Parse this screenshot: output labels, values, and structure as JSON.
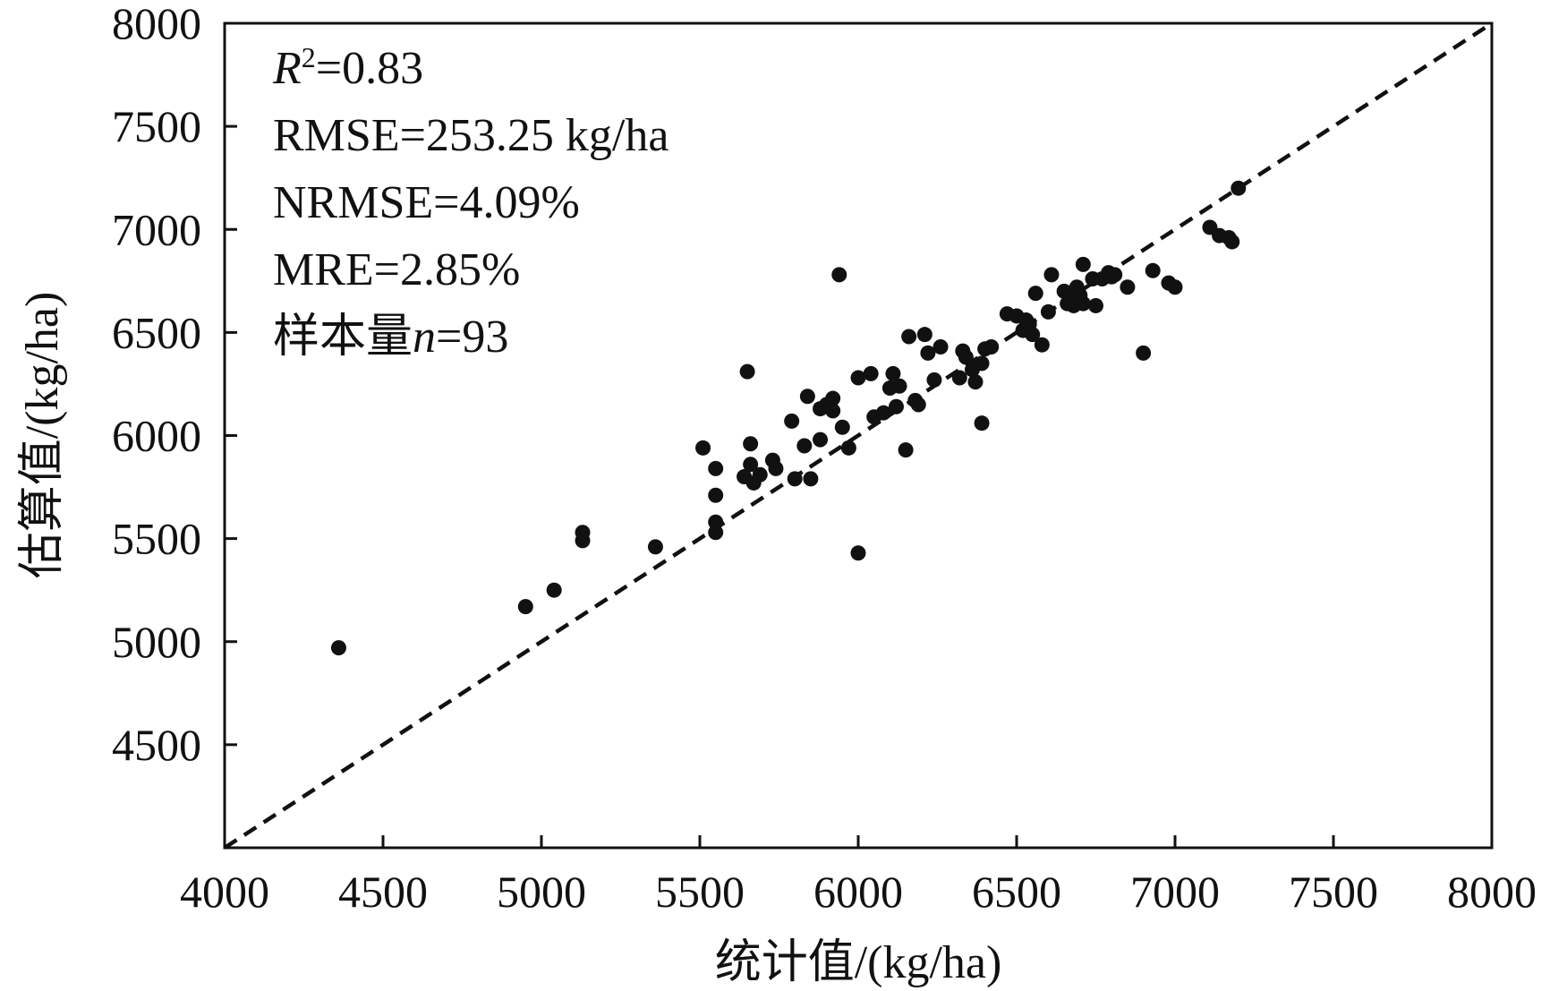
{
  "chart_data": {
    "type": "scatter",
    "xlabel": "统计值/(kg/ha)",
    "ylabel": "估算值/(kg/ha)",
    "xlim": [
      4000,
      8000
    ],
    "ylim": [
      4000,
      8000
    ],
    "x_ticks": [
      "4000",
      "4500",
      "5000",
      "5500",
      "6000",
      "6500",
      "7000",
      "7500",
      "8000"
    ],
    "y_ticks": [
      "4500",
      "5000",
      "5500",
      "6000",
      "6500",
      "7000",
      "7500",
      "8000"
    ],
    "grid": false,
    "reference_line": {
      "style": "dashed",
      "from": [
        4000,
        4000
      ],
      "to": [
        8000,
        8000
      ]
    },
    "annotations": {
      "r2_symbol": "R",
      "r2_sup": "2",
      "r2_value": "=0.83",
      "rmse": "RMSE=253.25 kg/ha",
      "nrmse": "NRMSE=4.09%",
      "mre": "MRE=2.85%",
      "n_prefix": "样本量",
      "n_symbol": "n",
      "n_value": "=93"
    },
    "points": [
      [
        4360,
        4970
      ],
      [
        4950,
        5170
      ],
      [
        5040,
        5250
      ],
      [
        5130,
        5530
      ],
      [
        5130,
        5490
      ],
      [
        5360,
        5460
      ],
      [
        5510,
        5940
      ],
      [
        5550,
        5840
      ],
      [
        5550,
        5710
      ],
      [
        5550,
        5580
      ],
      [
        5550,
        5530
      ],
      [
        5650,
        6310
      ],
      [
        5640,
        5800
      ],
      [
        5660,
        5960
      ],
      [
        5660,
        5860
      ],
      [
        5670,
        5770
      ],
      [
        5690,
        5810
      ],
      [
        5730,
        5880
      ],
      [
        5740,
        5840
      ],
      [
        5790,
        6070
      ],
      [
        5800,
        5790
      ],
      [
        5830,
        5950
      ],
      [
        5840,
        6190
      ],
      [
        5850,
        5790
      ],
      [
        5880,
        6130
      ],
      [
        5880,
        5980
      ],
      [
        5900,
        6150
      ],
      [
        5920,
        6180
      ],
      [
        5920,
        6120
      ],
      [
        5940,
        6780
      ],
      [
        5950,
        6040
      ],
      [
        5970,
        5940
      ],
      [
        6000,
        6280
      ],
      [
        6000,
        5430
      ],
      [
        6040,
        6300
      ],
      [
        6050,
        6090
      ],
      [
        6080,
        6110
      ],
      [
        6100,
        6230
      ],
      [
        6110,
        6300
      ],
      [
        6120,
        6140
      ],
      [
        6130,
        6240
      ],
      [
        6150,
        5930
      ],
      [
        6160,
        6480
      ],
      [
        6180,
        6170
      ],
      [
        6190,
        6150
      ],
      [
        6210,
        6490
      ],
      [
        6220,
        6400
      ],
      [
        6240,
        6270
      ],
      [
        6260,
        6430
      ],
      [
        6320,
        6280
      ],
      [
        6330,
        6410
      ],
      [
        6340,
        6380
      ],
      [
        6360,
        6320
      ],
      [
        6370,
        6260
      ],
      [
        6390,
        6060
      ],
      [
        6390,
        6350
      ],
      [
        6400,
        6420
      ],
      [
        6420,
        6430
      ],
      [
        6470,
        6590
      ],
      [
        6500,
        6580
      ],
      [
        6520,
        6510
      ],
      [
        6540,
        6540
      ],
      [
        6550,
        6490
      ],
      [
        6560,
        6690
      ],
      [
        6580,
        6440
      ],
      [
        6610,
        6780
      ],
      [
        6650,
        6700
      ],
      [
        6670,
        6690
      ],
      [
        6680,
        6630
      ],
      [
        6690,
        6720
      ],
      [
        6690,
        6660
      ],
      [
        6700,
        6680
      ],
      [
        6710,
        6640
      ],
      [
        6710,
        6830
      ],
      [
        6740,
        6760
      ],
      [
        6750,
        6630
      ],
      [
        6770,
        6760
      ],
      [
        6790,
        6790
      ],
      [
        6800,
        6770
      ],
      [
        6810,
        6780
      ],
      [
        6850,
        6720
      ],
      [
        6900,
        6400
      ],
      [
        6930,
        6800
      ],
      [
        6980,
        6740
      ],
      [
        7000,
        6720
      ],
      [
        7110,
        7010
      ],
      [
        7140,
        6970
      ],
      [
        7170,
        6960
      ],
      [
        7180,
        6940
      ],
      [
        7200,
        7200
      ],
      [
        6530,
        6560
      ],
      [
        6660,
        6640
      ],
      [
        6600,
        6600
      ]
    ]
  }
}
